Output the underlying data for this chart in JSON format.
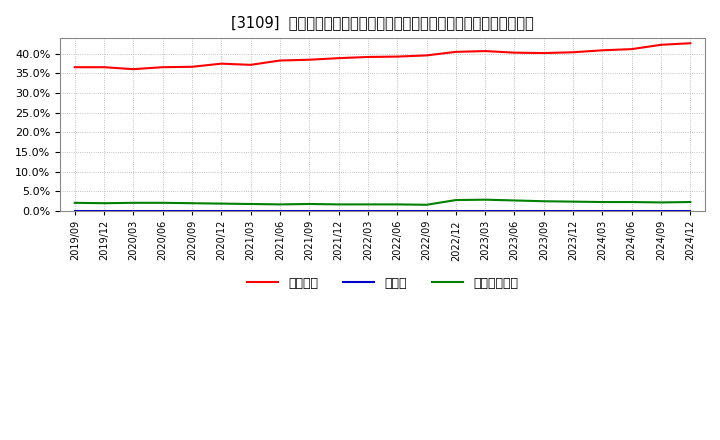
{
  "title": "[3109]  自己資本、のれん、繰延税金資産の総資産に対する比率の推移",
  "x_labels": [
    "2019/09",
    "2019/12",
    "2020/03",
    "2020/06",
    "2020/09",
    "2020/12",
    "2021/03",
    "2021/06",
    "2021/09",
    "2021/12",
    "2022/03",
    "2022/06",
    "2022/09",
    "2022/12",
    "2023/03",
    "2023/06",
    "2023/09",
    "2023/12",
    "2024/03",
    "2024/06",
    "2024/09",
    "2024/12"
  ],
  "jikoshihon": [
    36.6,
    36.6,
    36.1,
    36.6,
    36.7,
    37.5,
    37.2,
    38.3,
    38.5,
    38.9,
    39.2,
    39.3,
    39.6,
    40.5,
    40.7,
    40.3,
    40.2,
    40.4,
    40.9,
    41.2,
    42.3,
    42.7
  ],
  "noren": [
    0.0,
    0.0,
    0.0,
    0.0,
    0.0,
    0.0,
    0.0,
    0.0,
    0.0,
    0.0,
    0.0,
    0.0,
    0.0,
    0.0,
    0.0,
    0.0,
    0.0,
    0.0,
    0.0,
    0.0,
    0.0,
    0.0
  ],
  "kurinobe": [
    2.1,
    2.0,
    2.1,
    2.1,
    2.0,
    1.9,
    1.8,
    1.7,
    1.8,
    1.7,
    1.7,
    1.7,
    1.6,
    2.8,
    2.9,
    2.7,
    2.5,
    2.4,
    2.3,
    2.3,
    2.2,
    2.3
  ],
  "jiko_color": "#ff0000",
  "noren_color": "#0000cc",
  "kurinobe_color": "#008000",
  "background_color": "#ffffff",
  "grid_color": "#b0b0b0",
  "ylim": [
    0.0,
    44.0
  ],
  "yticks": [
    0.0,
    5.0,
    10.0,
    15.0,
    20.0,
    25.0,
    30.0,
    35.0,
    40.0
  ],
  "legend_jiko": "自己資本",
  "legend_noren": "のれん",
  "legend_kurinobe": "繰延税金資産"
}
